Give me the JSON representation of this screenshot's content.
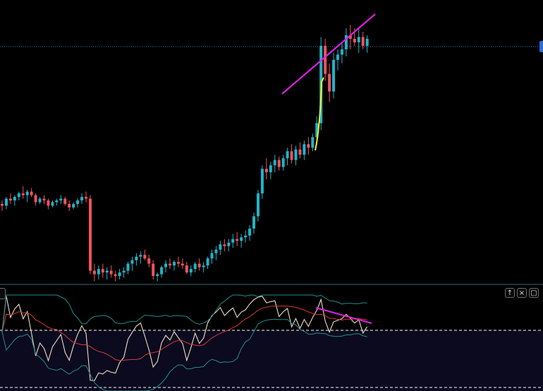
{
  "chart_data": [
    {
      "type": "candlestick",
      "pane": "price",
      "grid": false,
      "up_color": "#22b3c9",
      "down_color": "#f0535f",
      "last_price_line_color": "#2a86c9",
      "candles": [
        [
          210,
          212,
          206,
          209
        ],
        [
          209,
          214,
          207,
          213
        ],
        [
          213,
          216,
          210,
          212
        ],
        [
          212,
          215,
          209,
          214
        ],
        [
          214,
          217,
          212,
          216
        ],
        [
          216,
          220,
          213,
          215
        ],
        [
          215,
          218,
          211,
          217
        ],
        [
          217,
          219,
          214,
          215
        ],
        [
          215,
          216,
          209,
          211
        ],
        [
          211,
          214,
          210,
          213
        ],
        [
          213,
          215,
          210,
          212
        ],
        [
          212,
          213,
          207,
          209
        ],
        [
          209,
          212,
          208,
          211
        ],
        [
          211,
          213,
          209,
          212
        ],
        [
          212,
          215,
          210,
          213
        ],
        [
          213,
          214,
          209,
          210
        ],
        [
          210,
          212,
          206,
          208
        ],
        [
          208,
          211,
          207,
          210
        ],
        [
          210,
          213,
          208,
          212
        ],
        [
          212,
          216,
          210,
          214
        ],
        [
          214,
          217,
          211,
          213
        ],
        [
          213,
          215,
          170,
          172
        ],
        [
          172,
          176,
          166,
          170
        ],
        [
          170,
          175,
          167,
          173
        ],
        [
          173,
          176,
          168,
          171
        ],
        [
          171,
          174,
          167,
          172
        ],
        [
          172,
          175,
          168,
          170
        ],
        [
          170,
          172,
          166,
          169
        ],
        [
          169,
          173,
          167,
          171
        ],
        [
          171,
          174,
          168,
          172
        ],
        [
          172,
          177,
          170,
          176
        ],
        [
          176,
          180,
          172,
          178
        ],
        [
          178,
          182,
          175,
          180
        ],
        [
          180,
          183,
          176,
          181
        ],
        [
          181,
          184,
          178,
          179
        ],
        [
          179,
          181,
          174,
          176
        ],
        [
          176,
          178,
          167,
          169
        ],
        [
          169,
          171,
          166,
          170
        ],
        [
          170,
          175,
          168,
          174
        ],
        [
          174,
          178,
          171,
          176
        ],
        [
          176,
          179,
          173,
          175
        ],
        [
          175,
          178,
          172,
          177
        ],
        [
          177,
          180,
          174,
          176
        ],
        [
          176,
          179,
          173,
          175
        ],
        [
          175,
          177,
          170,
          171
        ],
        [
          171,
          175,
          169,
          173
        ],
        [
          173,
          177,
          171,
          176
        ],
        [
          176,
          179,
          172,
          174
        ],
        [
          174,
          177,
          171,
          175
        ],
        [
          175,
          180,
          173,
          179
        ],
        [
          179,
          184,
          176,
          182
        ],
        [
          182,
          186,
          178,
          184
        ],
        [
          184,
          189,
          181,
          187
        ],
        [
          187,
          190,
          183,
          186
        ],
        [
          186,
          190,
          183,
          188
        ],
        [
          188,
          193,
          185,
          190
        ],
        [
          190,
          194,
          186,
          189
        ],
        [
          189,
          193,
          185,
          191
        ],
        [
          191,
          195,
          188,
          192
        ],
        [
          192,
          198,
          189,
          196
        ],
        [
          196,
          205,
          193,
          203
        ],
        [
          203,
          218,
          200,
          216
        ],
        [
          216,
          232,
          213,
          230
        ],
        [
          230,
          236,
          224,
          228
        ],
        [
          228,
          234,
          224,
          232
        ],
        [
          232,
          238,
          228,
          235
        ],
        [
          235,
          237,
          229,
          231
        ],
        [
          231,
          238,
          229,
          236
        ],
        [
          236,
          242,
          232,
          240
        ],
        [
          240,
          244,
          233,
          235
        ],
        [
          235,
          243,
          232,
          241
        ],
        [
          241,
          245,
          236,
          238
        ],
        [
          238,
          246,
          235,
          244
        ],
        [
          244,
          248,
          238,
          242
        ],
        [
          242,
          250,
          240,
          248
        ],
        [
          248,
          260,
          245,
          256
        ],
        [
          256,
          305,
          252,
          300
        ],
        [
          300,
          304,
          280,
          284
        ],
        [
          284,
          290,
          268,
          274
        ],
        [
          274,
          296,
          270,
          292
        ],
        [
          292,
          298,
          286,
          295
        ],
        [
          295,
          302,
          290,
          298
        ],
        [
          298,
          310,
          294,
          306
        ],
        [
          306,
          312,
          298,
          304
        ],
        [
          304,
          310,
          300,
          302
        ],
        [
          302,
          310,
          296,
          305
        ],
        [
          305,
          308,
          298,
          300
        ],
        [
          300,
          306,
          296,
          304
        ]
      ]
    },
    {
      "type": "line",
      "pane": "oscillator",
      "overbought_line": 1,
      "series": [
        {
          "color": "#f2dcc8",
          "values": []
        },
        {
          "color": "#d63a3a",
          "values": []
        },
        {
          "color": "#1f8f8c",
          "values": []
        },
        {
          "color": "#1f8f8c",
          "values": []
        }
      ]
    }
  ],
  "icons": {
    "maximize_icon": "↑",
    "close_icon": "×",
    "restore_icon": "▢"
  }
}
